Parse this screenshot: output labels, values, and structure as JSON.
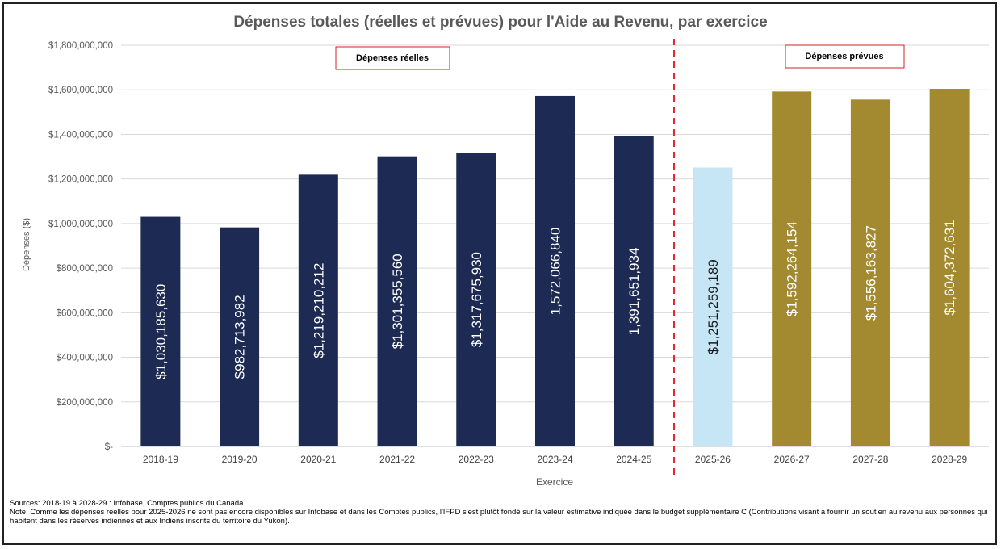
{
  "chart_data": {
    "type": "bar",
    "title": "Dépenses totales (réelles et prévues) pour l'Aide au Revenu, par exercice",
    "xlabel": "Exercice",
    "ylabel": "Dépenses ($)",
    "ylim": [
      0,
      1800000000
    ],
    "grid": true,
    "y_ticks": [
      {
        "value": 0,
        "label": "$-"
      },
      {
        "value": 200000000,
        "label": "$200,000,000"
      },
      {
        "value": 400000000,
        "label": "$400,000,000"
      },
      {
        "value": 600000000,
        "label": "$600,000,000"
      },
      {
        "value": 800000000,
        "label": "$800,000,000"
      },
      {
        "value": 1000000000,
        "label": "$1,000,000,000"
      },
      {
        "value": 1200000000,
        "label": "$1,200,000,000"
      },
      {
        "value": 1400000000,
        "label": "$1,400,000,000"
      },
      {
        "value": 1600000000,
        "label": "$1,600,000,000"
      },
      {
        "value": 1800000000,
        "label": "$1,800,000,000"
      }
    ],
    "categories": [
      "2018-19",
      "2019-20",
      "2020-21",
      "2021-22",
      "2022-23",
      "2023-24",
      "2024-25",
      "2025-26",
      "2026-27",
      "2027-28",
      "2028-29"
    ],
    "values": [
      1030185630,
      982713982,
      1219210212,
      1301355560,
      1317675930,
      1572066840,
      1391651934,
      1251259189,
      1592264154,
      1556163827,
      1604372631
    ],
    "data_labels": [
      "$1,030,185,630",
      "$982,713,982",
      "$1,219,210,212",
      "$1,301,355,560",
      "$1,317,675,930",
      "1,572,066,840",
      "1,391,651,934",
      "$1,251,259,189",
      "$1,592,264,154",
      "$1,556,163,827",
      "$1,604,372,631"
    ],
    "bar_colors": [
      "#1c2a54",
      "#1c2a54",
      "#1c2a54",
      "#1c2a54",
      "#1c2a54",
      "#1c2a54",
      "#1c2a54",
      "#c6e6f6",
      "#a38a31",
      "#a38a31",
      "#a38a31"
    ],
    "label_colors": [
      "#ffffff",
      "#ffffff",
      "#ffffff",
      "#ffffff",
      "#ffffff",
      "#ffffff",
      "#ffffff",
      "#1a1a1a",
      "#ffffff",
      "#ffffff",
      "#ffffff"
    ],
    "divider_color": "#e8262f",
    "annotations": [
      "Dépenses réelles",
      "Dépenses prévues"
    ]
  },
  "notes": {
    "sources": "Sources: 2018-19 à 2028-29 : Infobase, Comptes publics du Canada.",
    "note": "Note: Comme les dépenses réelles pour 2025-2026 ne sont pas encore disponibles sur Infobase et dans les Comptes publics, l'IFPD s'est plutôt fondé sur la valeur estimative indiquée dans le budget supplémentaire C (Contributions visant à fournir un soutien au revenu aux personnes qui habitent dans les réserves indiennes et aux Indiens inscrits du territoire du Yukon)."
  }
}
